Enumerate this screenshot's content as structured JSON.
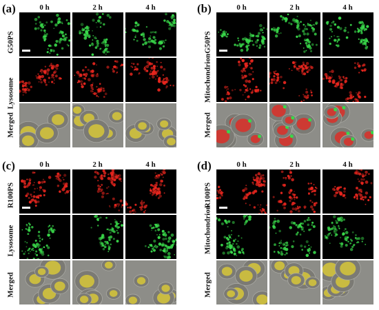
{
  "panels": [
    {
      "letter": "(a)",
      "columns": [
        "0 h",
        "2 h",
        "4 h"
      ],
      "rows": [
        {
          "label": "G50PS",
          "channel": "green"
        },
        {
          "label": "Lysosome",
          "channel": "red"
        },
        {
          "label": "Merged",
          "channel": "merged-yellow"
        }
      ]
    },
    {
      "letter": "(b)",
      "columns": [
        "0 h",
        "2 h",
        "4 h"
      ],
      "rows": [
        {
          "label": "G50PS",
          "channel": "green"
        },
        {
          "label": "Mitochondrion",
          "channel": "red"
        },
        {
          "label": "Merged",
          "channel": "merged-separate"
        }
      ]
    },
    {
      "letter": "(c)",
      "columns": [
        "0 h",
        "2 h",
        "4 h"
      ],
      "rows": [
        {
          "label": "R100PS",
          "channel": "red"
        },
        {
          "label": "Lysosome",
          "channel": "green"
        },
        {
          "label": "Merged",
          "channel": "merged-yellow"
        }
      ]
    },
    {
      "letter": "(d)",
      "columns": [
        "0 h",
        "2 h",
        "4 h"
      ],
      "rows": [
        {
          "label": "R100PS",
          "channel": "red"
        },
        {
          "label": "Mitochondrion",
          "channel": "green"
        },
        {
          "label": "Merged",
          "channel": "merged-yellow"
        }
      ]
    }
  ],
  "colors": {
    "green": "#39d84a",
    "red": "#e8261e",
    "yellow": "#e3d230",
    "background": "#000000",
    "brightfield": "#8d8d88"
  }
}
